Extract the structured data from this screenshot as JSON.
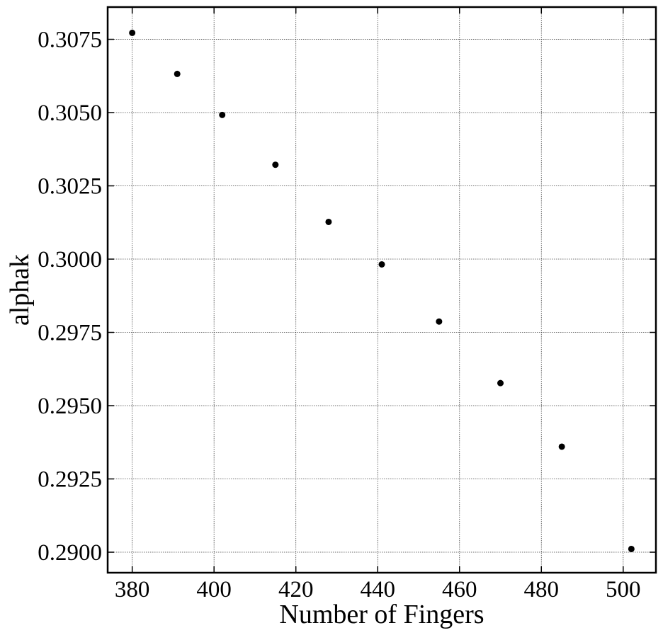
{
  "chart_data": {
    "type": "scatter",
    "title": "",
    "xlabel": "Number of Fingers",
    "ylabel": "alphak",
    "x": [
      380,
      391,
      402,
      415,
      428,
      441,
      455,
      470,
      485,
      502
    ],
    "y": [
      0.30772,
      0.30632,
      0.30492,
      0.30322,
      0.30127,
      0.29982,
      0.29787,
      0.29577,
      0.2936,
      0.29011
    ],
    "xlim": [
      374,
      508
    ],
    "ylim": [
      0.2893,
      0.3086
    ],
    "xticks": [
      380,
      400,
      420,
      440,
      460,
      480,
      500
    ],
    "xtick_labels": [
      "380",
      "400",
      "420",
      "440",
      "460",
      "480",
      "500"
    ],
    "yticks": [
      0.29,
      0.2925,
      0.295,
      0.2975,
      0.3,
      0.3025,
      0.305,
      0.3075
    ],
    "ytick_labels": [
      "0.2900",
      "0.2925",
      "0.2950",
      "0.2975",
      "0.3000",
      "0.3025",
      "0.3050",
      "0.3075"
    ],
    "grid": true,
    "ticks_direction": "in",
    "marker_color": "#000000"
  }
}
